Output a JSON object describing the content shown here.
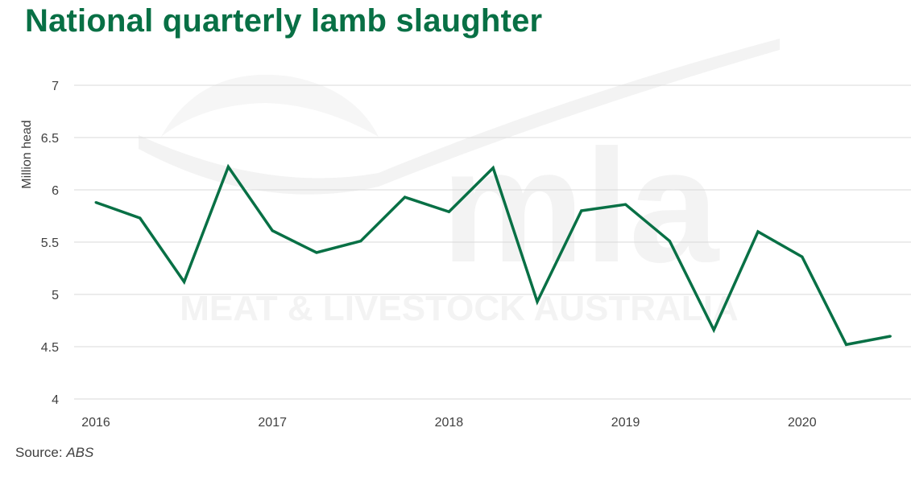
{
  "title": "National quarterly lamb slaughter",
  "source_label": "Source:",
  "source_value": "ABS",
  "watermark": {
    "logo_text": "mla",
    "subtitle": "MEAT & LIVESTOCK AUSTRALIA"
  },
  "colors": {
    "title": "#087045",
    "line": "#087045",
    "grid": "#d9d9d9",
    "axis_text": "#404040",
    "watermark": "#f3f3f3"
  },
  "chart_data": {
    "type": "line",
    "title": "National quarterly lamb slaughter",
    "xlabel": "",
    "ylabel": "Million head",
    "x": [
      "2016 Q1",
      "2016 Q2",
      "2016 Q3",
      "2016 Q4",
      "2017 Q1",
      "2017 Q2",
      "2017 Q3",
      "2017 Q4",
      "2018 Q1",
      "2018 Q2",
      "2018 Q3",
      "2018 Q4",
      "2019 Q1",
      "2019 Q2",
      "2019 Q3",
      "2019 Q4",
      "2020 Q1",
      "2020 Q2",
      "2020 Q3"
    ],
    "x_tick_labels": [
      "2016",
      "2017",
      "2018",
      "2019",
      "2020"
    ],
    "y_tick_labels": [
      "4",
      "4.5",
      "5",
      "5.5",
      "6",
      "6.5",
      "7"
    ],
    "ylim": [
      4,
      7
    ],
    "grid": "horizontal",
    "legend": "none",
    "series": [
      {
        "values": [
          5.88,
          5.73,
          5.12,
          6.22,
          5.61,
          5.4,
          5.51,
          5.93,
          5.79,
          6.21,
          4.93,
          5.8,
          5.86,
          5.51,
          4.66,
          5.6,
          5.36,
          4.52,
          4.6
        ]
      }
    ]
  }
}
